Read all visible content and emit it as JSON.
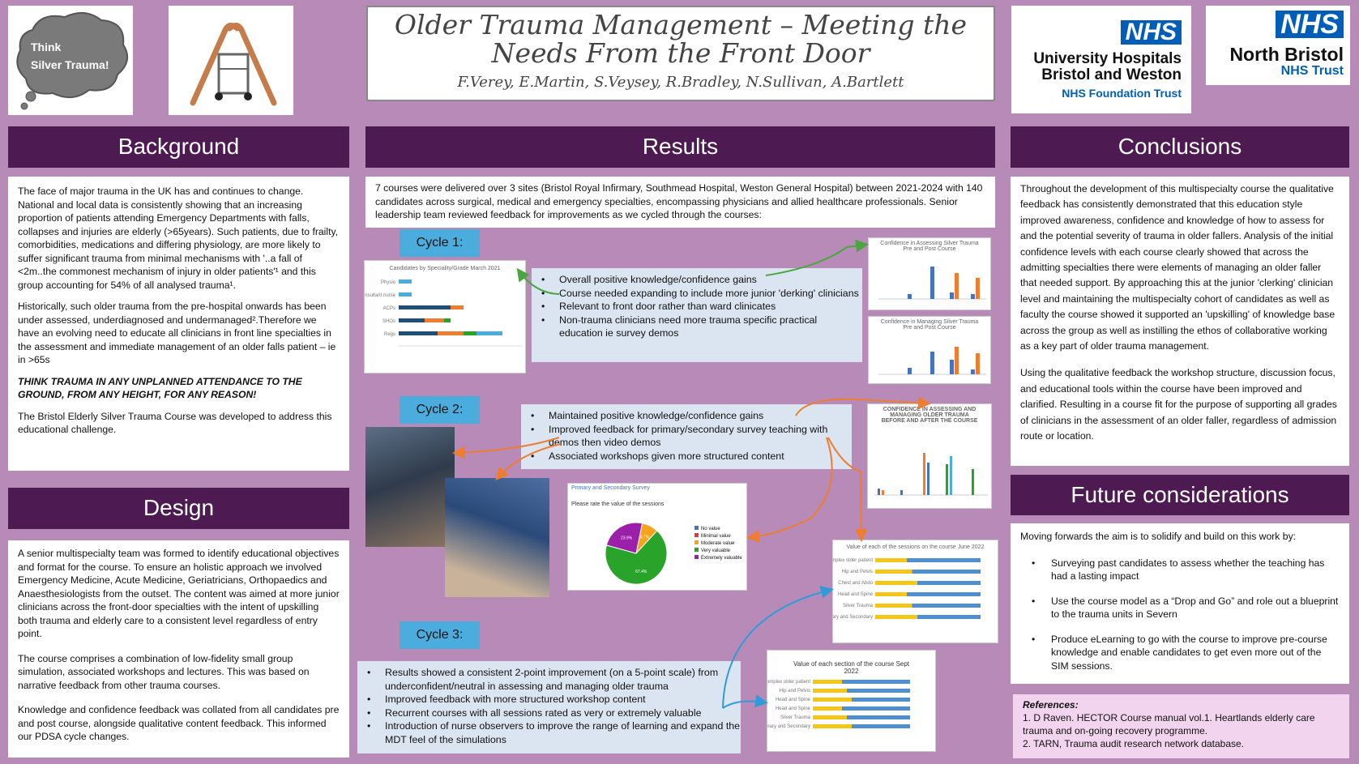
{
  "title": {
    "line1": "Older Trauma Management – Meeting the",
    "line2": "Needs From the Front Door",
    "authors": "F.Verey, E.Martin, S.Veysey, R.Bradley, N.Sullivan, A.Bartlett"
  },
  "logos": {
    "thought_line1": "Think",
    "thought_line2": "Silver Trauma!",
    "uhbw_nhs": "NHS",
    "uhbw_name1": "University Hospitals",
    "uhbw_name2": "Bristol and Weston",
    "uhbw_trust": "NHS Foundation Trust",
    "nb_nhs": "NHS",
    "nb_name": "North Bristol",
    "nb_trust": "NHS Trust"
  },
  "background": {
    "header": "Background",
    "p1": "The face of major trauma in the UK has and continues to change. National and local data is consistently showing that an increasing proportion of patients attending Emergency Departments with falls, collapses and injuries are elderly (>65years). Such patients, due to frailty, comorbidities, medications and differing physiology, are more likely to suffer significant trauma from minimal mechanisms with '..a fall of <2m..the commonest mechanism of injury in older patients'¹ and this group accounting for 54% of all analysed trauma¹.",
    "p2": "Historically, such older trauma from the pre-hospital onwards has been under assessed, underdiagnosed and undermanaged².Therefore we have an evolving need to educate all clinicians in front line specialties in the assessment and immediate management of an older falls patient – ie in >65s",
    "p3": "THINK TRAUMA IN ANY UNPLANNED ATTENDANCE TO THE GROUND, FROM ANY HEIGHT, FOR ANY REASON!",
    "p4": "The Bristol Elderly Silver Trauma Course was developed to address this educational challenge."
  },
  "design": {
    "header": "Design",
    "p1": "A senior multispecialty team was formed to identify educational objectives and format for the course. To ensure an holistic approach we involved Emergency Medicine, Acute Medicine, Geriatricians, Orthopaedics and Anaesthesiologists from the outset. The content was aimed at more junior clinicians across the front-door specialties with the intent of upskilling both trauma and elderly care to a consistent level regardless of entry point.",
    "p2": "The course comprises a combination of low-fidelity small group simulation, associated workshops and lectures. This was based on narrative feedback from other trauma courses.",
    "p3": "Knowledge and confidence feedback was collated from all candidates pre and post course, alongside qualitative content feedback. This informed our PDSA cycle changes."
  },
  "results": {
    "header": "Results",
    "intro": "7 courses were delivered over 3 sites (Bristol Royal Infirmary, Southmead Hospital, Weston General Hospital) between 2021-2024 with 140 candidates across surgical, medical and emergency specialties, encompassing physicians and allied healthcare professionals. Senior leadership team reviewed feedback for improvements as we cycled through the courses:",
    "cycle1": {
      "label": "Cycle 1:",
      "bullets": [
        "Overall positive knowledge/confidence gains",
        "Course needed expanding to include more junior 'derking' clinicians",
        "Relevant to front door rather than ward clinicates",
        "Non-trauma clinicians need more trauma specific practical education ie survey demos"
      ]
    },
    "cycle2": {
      "label": "Cycle 2:",
      "bullets": [
        "Maintained positive knowledge/confidence gains",
        "Improved feedback for primary/secondary survey teaching with demos then video demos",
        "Associated workshops given more structured content"
      ]
    },
    "cycle3": {
      "label": "Cycle 3:",
      "bullets": [
        "Results showed a consistent 2-point improvement (on a 5-point scale) from underconfident/neutral in assessing and managing older trauma",
        "Improved feedback with more structured workshop content",
        "Recurrent courses with all sessions rated as very or extremely valuable",
        "Introduction of nurse observers to improve the range of learning and expand the MDT feel of the simulations"
      ]
    },
    "charts": {
      "candidates_title": "Candidates by Speciality/Grade March 2021",
      "candidates_rows": [
        "Physio",
        "Consultant nurse",
        "ACPs",
        "SHOs",
        "Regs"
      ],
      "candidates_values": [
        1,
        1,
        4,
        4,
        8
      ],
      "conf_assess_title1": "Confidence in Assessing Silver Trauma",
      "conf_assess_title2": "Pre and Post Course",
      "conf_manage_title1": "Confidence in Managing Silver Trauma",
      "conf_manage_title2": "Pre and Post Course",
      "conf3_title1": "CONFIDENCE IN ASSESSING AND",
      "conf3_title2": "MANAGING OLDER TRAUMA",
      "conf3_title3": "BEFORE AND AFTER THE COURSE",
      "pie_header": "Primary and Secondary Survey",
      "pie_question": "Please rate the value of the sessions",
      "pie_legend": [
        "No value",
        "Minimal value",
        "Moderate value",
        "Very valuable",
        "Extremely valuable"
      ],
      "pie_values": [
        0,
        0,
        8.7,
        67.4,
        23.9
      ],
      "pie_labels": [
        "23.9%",
        "8.7%",
        "67.4%"
      ],
      "pie_colors": [
        "#4472c4",
        "#e03c31",
        "#f7a21b",
        "#29a329",
        "#9b1fa8"
      ],
      "value2022_title": "Value of each of the sessions on the course June 2022",
      "value2022_rows": [
        "Complex older patient",
        "Hip and Pelvis",
        "Chest and Abdo",
        "Head and Spine",
        "Silver Trauma",
        "Primary and Secondary"
      ],
      "value2022sept_title1": "Value of each section of the course Sept",
      "value2022sept_title2": "2022",
      "value2022sept_rows": [
        "Complex older patient",
        "Hip and Pelvis",
        "Head and Spine",
        "Head and Spine",
        "Silver Trauma",
        "Primary and Secondary"
      ]
    }
  },
  "conclusions": {
    "header": "Conclusions",
    "p1": "Throughout the development of this multispecialty course the qualitative feedback has consistently demonstrated that this education style improved awareness, confidence and knowledge of how to assess for and the  potential severity of trauma in older fallers. Analysis of the initial confidence levels with each course clearly showed that across the admitting specialties there were elements of managing an older faller that needed support. By approaching this at the junior 'clerking' clinician level and maintaining  the multispecialty  cohort of candidates as well as faculty the course showed it supported an 'upskilling' of knowledge base across the group as well as instilling the ethos of collaborative working as a key part of older trauma management.",
    "p2": "Using the qualitative feedback the workshop structure, discussion focus, and educational tools within the course have been improved and clarified. Resulting in a course fit for the purpose of supporting all grades of clinicians in the assessment of an older faller, regardless of admission route or location."
  },
  "future": {
    "header": "Future considerations",
    "intro": "Moving forwards the aim is to solidify and build on this work by:",
    "bullets": [
      "Surveying past candidates to assess whether the teaching has had a lasting impact",
      "Use the course model as a “Drop and Go” and role out a blueprint to the trauma units in Severn",
      "Produce eLearning to go with the course to improve pre-course knowledge and enable candidates to get even more out of the SIM sessions."
    ]
  },
  "references": {
    "header": "References:",
    "items": [
      "1.     D Raven. HECTOR Course manual vol.1. Heartlands elderly care trauma and on-going recovery programme.",
      "2.     TARN, Trauma audit research network database."
    ]
  },
  "colors": {
    "page_bg": "#b88ab8",
    "header_bg": "#4e1a52",
    "cycle_tag": "#4bacde",
    "bluebox": "#dbe5f1",
    "nhs_blue": "#005eb8",
    "arrow_green": "#4aa640",
    "arrow_orange": "#ef7d31",
    "arrow_blue": "#2f9bd8"
  }
}
